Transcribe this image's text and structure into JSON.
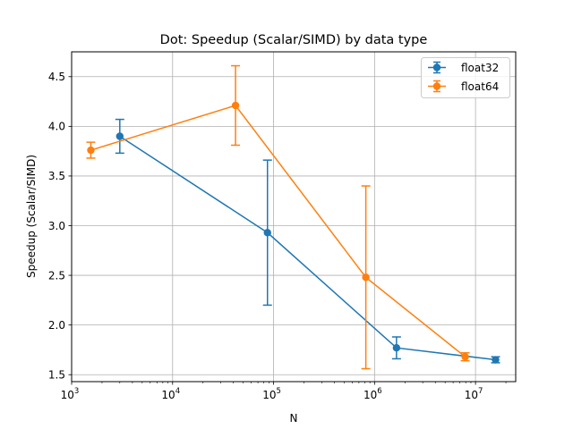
{
  "chart_data": {
    "type": "line",
    "title": "Dot: Speedup (Scalar/SIMD) by data type",
    "xlabel": "N",
    "ylabel": "Speedup (Scalar/SIMD)",
    "xscale": "log",
    "xlim": [
      1000,
      25000000
    ],
    "ylim": [
      1.43,
      4.75
    ],
    "grid": true,
    "legend_position": "top-right",
    "x_ticks": [
      {
        "base": "10",
        "exp": "3",
        "value": 1000
      },
      {
        "base": "10",
        "exp": "4",
        "value": 10000
      },
      {
        "base": "10",
        "exp": "5",
        "value": 100000
      },
      {
        "base": "10",
        "exp": "6",
        "value": 1000000
      },
      {
        "base": "10",
        "exp": "7",
        "value": 10000000
      }
    ],
    "y_ticks": [
      {
        "label": "1.5",
        "value": 1.5
      },
      {
        "label": "2.0",
        "value": 2.0
      },
      {
        "label": "2.5",
        "value": 2.5
      },
      {
        "label": "3.0",
        "value": 3.0
      },
      {
        "label": "3.5",
        "value": 3.5
      },
      {
        "label": "4.0",
        "value": 4.0
      },
      {
        "label": "4.5",
        "value": 4.5
      }
    ],
    "series": [
      {
        "name": "float32",
        "color": "#1f77b4",
        "x": [
          3000,
          87000,
          1650000,
          15800000
        ],
        "y": [
          3.9,
          2.93,
          1.77,
          1.65
        ],
        "err": [
          0.17,
          0.73,
          0.11,
          0.03
        ]
      },
      {
        "name": "float64",
        "color": "#ff7f0e",
        "x": [
          1550,
          42000,
          820000,
          7900000
        ],
        "y": [
          3.76,
          4.21,
          2.48,
          1.68
        ],
        "err": [
          0.08,
          0.4,
          0.92,
          0.04
        ]
      }
    ]
  }
}
